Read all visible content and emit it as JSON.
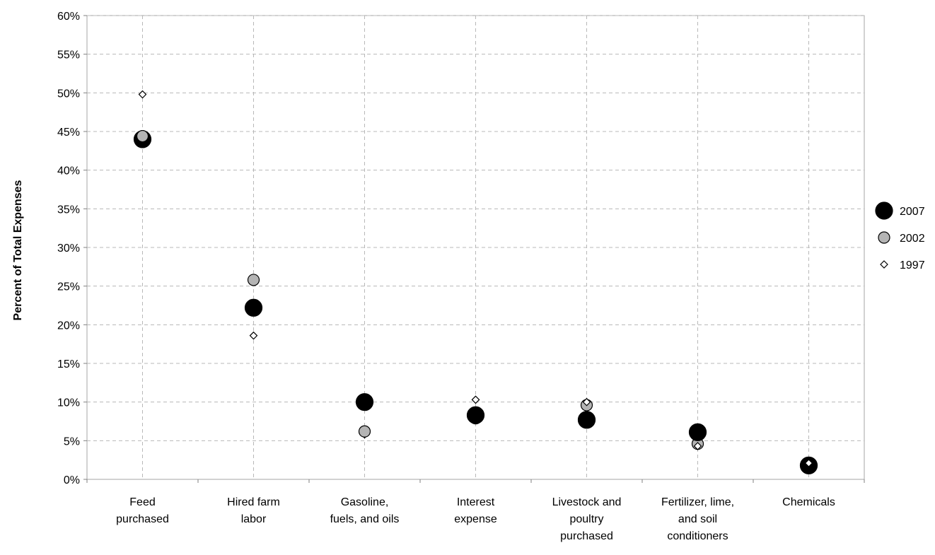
{
  "chart_data": {
    "type": "scatter",
    "title": "",
    "xlabel": "",
    "ylabel": "Percent of Total Expenses",
    "ylim": [
      0,
      60
    ],
    "yticks": [
      "0%",
      "5%",
      "10%",
      "15%",
      "20%",
      "25%",
      "30%",
      "35%",
      "40%",
      "45%",
      "50%",
      "55%",
      "60%"
    ],
    "grid": true,
    "legend_position": "right",
    "categories": [
      [
        "Feed",
        "purchased"
      ],
      [
        "Hired farm",
        "labor"
      ],
      [
        "Gasoline,",
        "fuels, and oils"
      ],
      [
        "Interest",
        "expense"
      ],
      [
        "Livestock and",
        "poultry",
        "purchased"
      ],
      [
        "Fertilizer, lime,",
        "and soil",
        "conditioners"
      ],
      [
        "Chemicals"
      ]
    ],
    "series": [
      {
        "name": "1997",
        "marker": "diamond",
        "fill": "#ffffff",
        "stroke": "#000000",
        "values": [
          49.8,
          18.6,
          5.8,
          10.3,
          10.0,
          4.3,
          2.1
        ]
      },
      {
        "name": "2002",
        "marker": "circle-medium",
        "fill": "#b4b4b4",
        "stroke": "#000000",
        "values": [
          44.4,
          25.8,
          6.2,
          7.9,
          9.6,
          4.6,
          1.9
        ]
      },
      {
        "name": "2007",
        "marker": "circle-large",
        "fill": "#000000",
        "stroke": "#000000",
        "values": [
          44.0,
          22.2,
          10.0,
          8.3,
          7.7,
          6.1,
          1.8
        ]
      }
    ],
    "legend_order": [
      "2007",
      "2002",
      "1997"
    ]
  }
}
